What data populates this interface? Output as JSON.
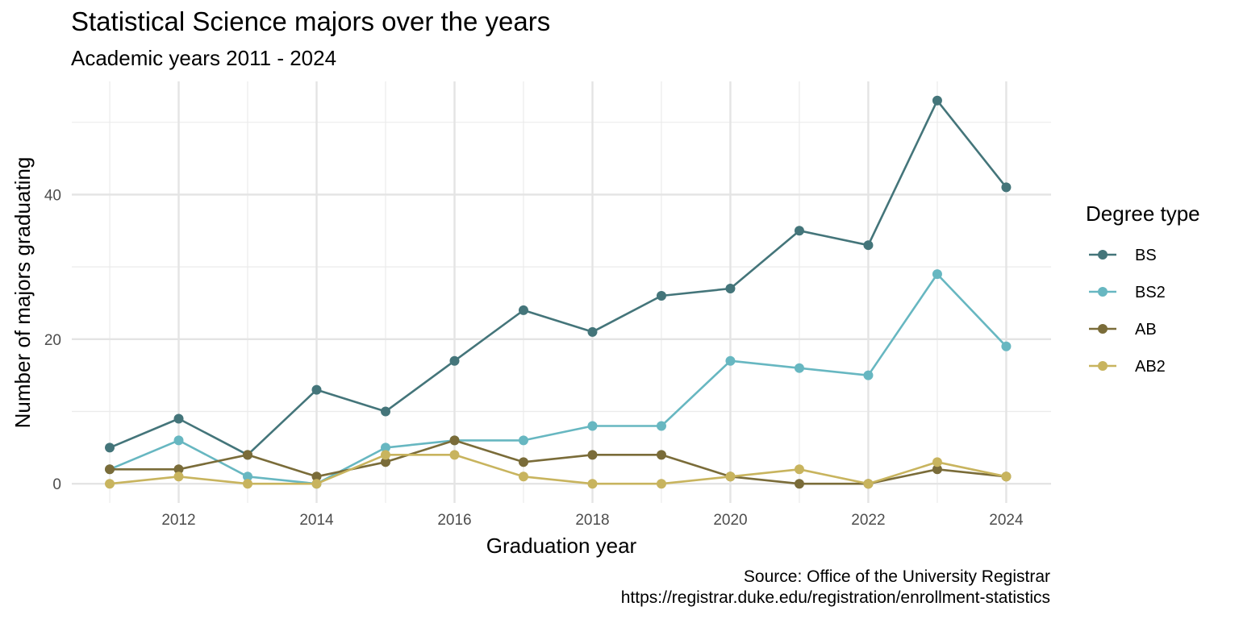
{
  "chart_data": {
    "type": "line",
    "title": "Statistical Science majors over the years",
    "subtitle": "Academic years 2011 - 2024",
    "xlabel": "Graduation year",
    "ylabel": "Number of majors graduating",
    "x": [
      2011,
      2012,
      2013,
      2014,
      2015,
      2016,
      2017,
      2018,
      2019,
      2020,
      2021,
      2022,
      2023,
      2024
    ],
    "xlim": [
      2010.45,
      2024.65
    ],
    "ylim": [
      -2.65,
      55.65
    ],
    "x_ticks": [
      2012,
      2014,
      2016,
      2018,
      2020,
      2022,
      2024
    ],
    "y_ticks": [
      0,
      20,
      40
    ],
    "grid": true,
    "legend": {
      "title": "Degree type",
      "position": "right"
    },
    "series": [
      {
        "name": "BS",
        "color": "#44757a",
        "values": [
          5,
          9,
          4,
          13,
          10,
          17,
          24,
          21,
          26,
          27,
          35,
          33,
          53,
          41
        ]
      },
      {
        "name": "BS2",
        "color": "#67b7c1",
        "values": [
          2,
          6,
          1,
          0,
          5,
          6,
          6,
          8,
          8,
          17,
          16,
          15,
          29,
          19
        ]
      },
      {
        "name": "AB",
        "color": "#7a6c39",
        "values": [
          2,
          2,
          4,
          1,
          3,
          6,
          3,
          4,
          4,
          1,
          0,
          0,
          2,
          1
        ]
      },
      {
        "name": "AB2",
        "color": "#c8b45e",
        "values": [
          0,
          1,
          0,
          0,
          4,
          4,
          1,
          0,
          0,
          1,
          2,
          0,
          3,
          1
        ]
      }
    ],
    "caption": [
      "Source: Office of the University Registrar",
      "https://registrar.duke.edu/registration/enrollment-statistics"
    ]
  }
}
